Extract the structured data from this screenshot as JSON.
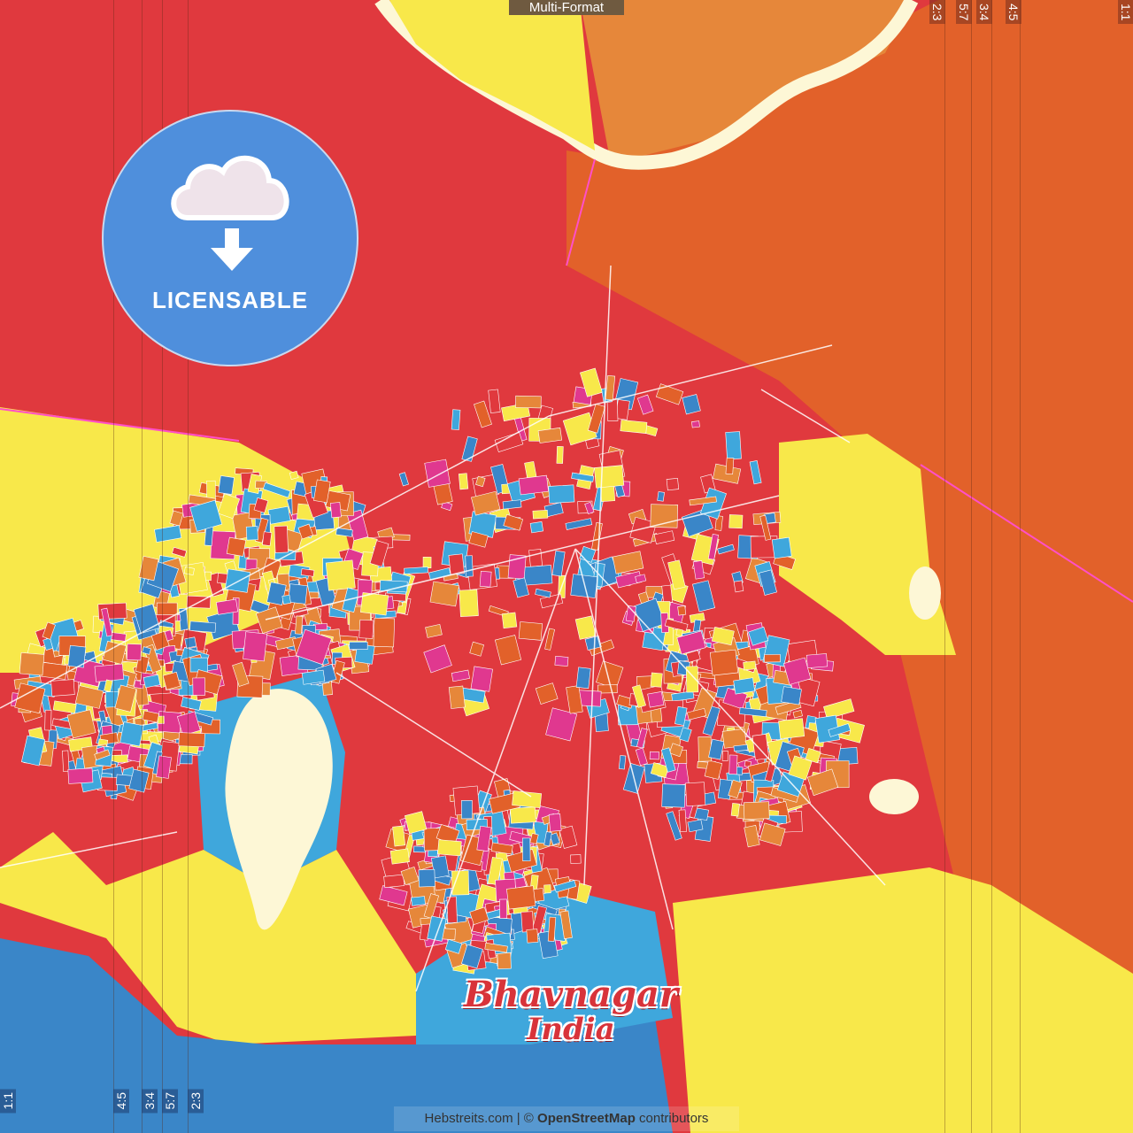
{
  "map": {
    "city": "Bhavnagar",
    "country": "India",
    "colors": {
      "red": "#e0393e",
      "orange": "#e2612a",
      "light_orange": "#e6873a",
      "yellow": "#f8e84a",
      "blue": "#3a86c8",
      "light_blue": "#3fa7dc",
      "magenta": "#e0388f",
      "water_light": "#fdf7d6",
      "roads": "#ffffff",
      "boundary": "#ff4fc8"
    }
  },
  "format_tag": "Multi-Format",
  "badge": {
    "icon": "cloud-download-icon",
    "label": "LICENSABLE"
  },
  "aspect_ratios_top": [
    "2:3",
    "5:7",
    "3:4",
    "4:5",
    "1:1"
  ],
  "aspect_ratios_bottom": [
    "1:1",
    "4:5",
    "3:4",
    "5:7",
    "2:3"
  ],
  "attribution": {
    "site": "Hebstreits.com",
    "separator": " | © ",
    "osm": "OpenStreetMap",
    "suffix": " contributors"
  }
}
